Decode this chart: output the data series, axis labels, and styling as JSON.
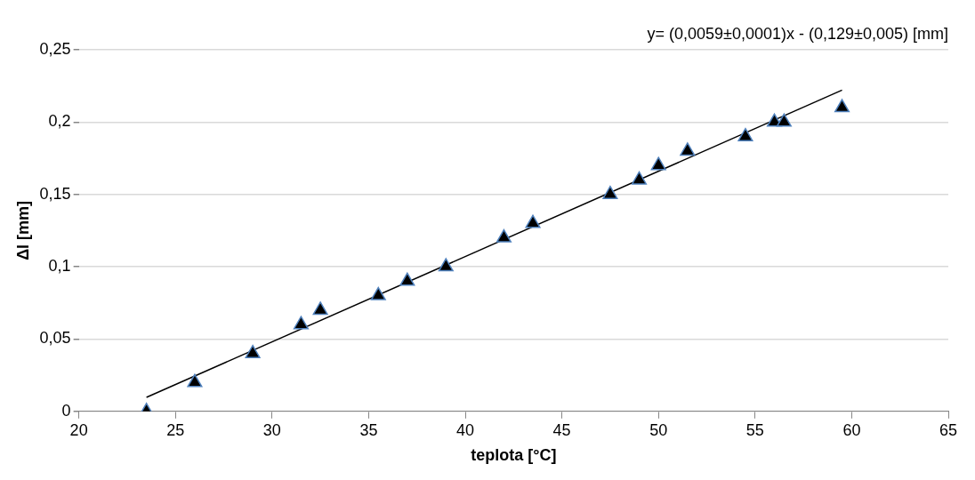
{
  "chart_data": {
    "type": "scatter",
    "xlabel": "teplota [°C]",
    "ylabel": "Δl [mm]",
    "annotations": [
      "y= (0,0059±0,0001)x - (0,129±0,005) [mm]"
    ],
    "xlim": [
      20,
      65
    ],
    "xticks": [
      20,
      25,
      30,
      35,
      40,
      45,
      50,
      55,
      60,
      65
    ],
    "ylim": [
      0,
      0.25
    ],
    "yticks": [
      {
        "value": 0,
        "label": "0"
      },
      {
        "value": 0.05,
        "label": "0,05"
      },
      {
        "value": 0.1,
        "label": "0,1"
      },
      {
        "value": 0.15,
        "label": "0,15"
      },
      {
        "value": 0.2,
        "label": "0,2"
      },
      {
        "value": 0.25,
        "label": "0,25"
      }
    ],
    "grid": "y",
    "legend": false,
    "marker": "triangle",
    "series": [
      {
        "color": "#000000",
        "x": [
          23.5,
          26,
          29,
          31.5,
          32.5,
          35.5,
          37,
          39,
          42,
          43.5,
          47.5,
          49,
          50,
          51.5,
          54.5,
          56,
          56.5,
          59.5
        ],
        "values": [
          0,
          0.02,
          0.04,
          0.06,
          0.07,
          0.08,
          0.09,
          0.1,
          0.12,
          0.13,
          0.15,
          0.16,
          0.17,
          0.18,
          0.19,
          0.2,
          0.2,
          0.21
        ]
      },
      {
        "type": "line",
        "color": "#000000",
        "marker": "none",
        "line_style": "solid",
        "x": [
          23.5,
          59.5
        ],
        "values": [
          0.0097,
          0.2221
        ]
      }
    ]
  }
}
